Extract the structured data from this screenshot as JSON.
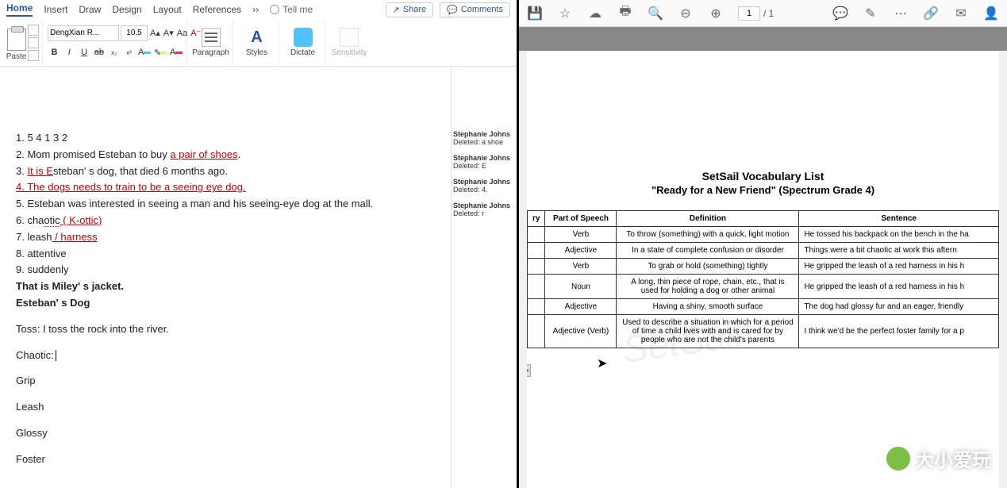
{
  "tabs": {
    "home": "Home",
    "insert": "Insert",
    "draw": "Draw",
    "design": "Design",
    "layout": "Layout",
    "references": "References",
    "tellme": "Tell me"
  },
  "topright": {
    "share": "Share",
    "comments": "Comments"
  },
  "ribbon": {
    "paste": "Paste",
    "paragraph": "Paragraph",
    "styles": "Styles",
    "dictate": "Dictate",
    "sensitivity": "Sensitivity",
    "font_name": "DengXian R...",
    "font_size": "10.5"
  },
  "doc": {
    "l1": "1. 5 4 1 3 2",
    "l2a": "2. Mom promised Esteban to buy ",
    "l2b": "a pair of shoes",
    "l3a": "3. ",
    "l3b": "It is E",
    "l3c": "steban' s dog, that died 6 months ago.",
    "l4": "4. The dogs needs to train to be a seeing eye dog.",
    "l5": "5. Esteban was interested in seeing a man and his seeing-eye dog at the mall.",
    "l6a": "6. cha",
    "l6b": "otic",
    "l6c": " ( K-ottic)",
    "l7a": "7. leash",
    "l7b": " / harness",
    "l8": "8. attentive",
    "l9": "9. suddenly",
    "p1": "That is Miley' s jacket.",
    "p2": "Esteban' s Dog",
    "p3": "Toss:   I toss the rock into the river.",
    "p4": "Chaotic:",
    "p5": "Grip",
    "p6": "Leash",
    "p7": "Glossy",
    "p8": "Foster"
  },
  "comments": {
    "author": "Stephanie Johns",
    "d1": "a shoe",
    "d2": "E",
    "d3": "4.",
    "d4": "r",
    "label": "Deleted:"
  },
  "pdf": {
    "page_current": "1",
    "page_total": "/ 1",
    "title": "SetSail Vocabulary List",
    "subtitle": "\"Ready for a New Friend\" (Spectrum Grade 4)",
    "headers": {
      "voc": "ry",
      "pos": "Part of Speech",
      "def": "Definition",
      "sent": "Sentence"
    },
    "rows": [
      {
        "pos": "Verb",
        "def": "To throw (something) with a quick, light motion",
        "sent": "He tossed his backpack on the bench in the ha"
      },
      {
        "pos": "Adjective",
        "def": "In a state of complete confusion or disorder",
        "sent": "Things were a bit chaotic at work this aftern"
      },
      {
        "pos": "Verb",
        "def": "To grab or hold (something) tightly",
        "sent": "He gripped the leash of a red harness in his h"
      },
      {
        "pos": "Noun",
        "def": "A long, thin piece of rope, chain, etc., that is used for holding a dog or other animal",
        "sent": "He gripped the leash of a red harness in his h"
      },
      {
        "pos": "Adjective",
        "def": "Having a shiny, smooth surface",
        "sent": "The dog had glossy fur and an eager, friendly"
      },
      {
        "pos": "Adjective (Verb)",
        "def": "Used to describe a situation in which for a period of time a child lives with and is cared for by people who are not the child's parents",
        "sent": "I think we'd be the perfect foster family for a p"
      }
    ],
    "watermark": "SetSail",
    "brand": "大小爱玩"
  }
}
